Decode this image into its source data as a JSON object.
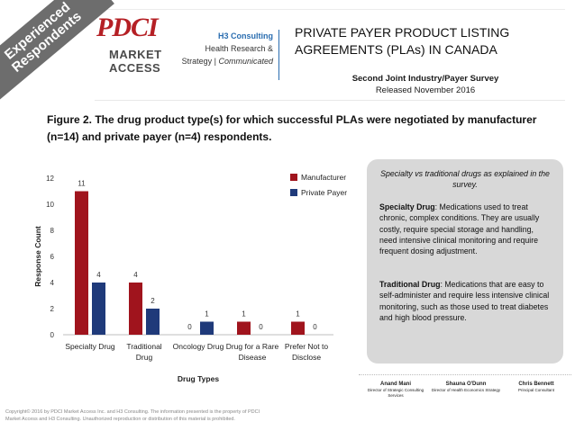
{
  "banner": {
    "line1": "Experienced",
    "line2": "Respondents"
  },
  "header": {
    "logo_text": "PDCI",
    "logo_sub1": "MARKET",
    "logo_sub2": "ACCESS",
    "h3_name": "H3 Consulting",
    "h3_line2": "Health Research &",
    "h3_line3a": "Strategy | ",
    "h3_line3b": "Communicated",
    "title": "PRIVATE PAYER PRODUCT LISTING AGREEMENTS (PLAs) IN CANADA",
    "survey_line1": "Second Joint Industry/Payer Survey",
    "survey_line2": "Released November 2016"
  },
  "caption": "Figure 2. The drug product type(s) for which successful PLAs were negotiated by manufacturer (n=14) and private payer (n=4) respondents.",
  "chart_data": {
    "type": "bar",
    "categories": [
      [
        "Specialty Drug"
      ],
      [
        "Traditional",
        "Drug"
      ],
      [
        "Oncology Drug"
      ],
      [
        "Drug for a Rare",
        "Disease"
      ],
      [
        "Prefer Not to",
        "Disclose"
      ]
    ],
    "series": [
      {
        "name": "Manufacturer",
        "values": [
          11,
          4,
          0,
          1,
          1
        ],
        "color": "#a0141d"
      },
      {
        "name": "Private Payer",
        "values": [
          4,
          2,
          1,
          0,
          0
        ],
        "color": "#1f3a7a"
      }
    ],
    "ylim": [
      0,
      12
    ],
    "yticks": [
      0,
      2,
      4,
      6,
      8,
      10,
      12
    ],
    "xlabel": "Drug Types",
    "ylabel": "Response Count",
    "legend_position": "top-right",
    "grid": false
  },
  "info": {
    "heading": "Specialty vs traditional drugs as explained in the survey.",
    "specialty_term": "Specialty Drug",
    "specialty_text": ": Medications used to treat chronic, complex conditions. They are usually costly, require special storage and handling, need intensive clinical monitoring and require frequent dosing adjustment.",
    "traditional_term": "Traditional Drug",
    "traditional_text": ": Medications that are easy to self-administer and require less intensive clinical monitoring, such as those used to treat diabetes and high blood pressure."
  },
  "contacts": [
    {
      "name": "Anand Mani",
      "role": "Director of Strategic Consulting Services"
    },
    {
      "name": "Shauna O'Dunn",
      "role": "Director of Health Economics Strategy"
    },
    {
      "name": "Chris Bennett",
      "role": "Principal Consultant"
    }
  ],
  "copyright": "Copyright© 2016 by PDCI Market Access Inc. and H3 Consulting. The information presented is the property of PDCI Market Access and H3 Consulting. Unauthorized reproduction or distribution of this material is prohibited."
}
